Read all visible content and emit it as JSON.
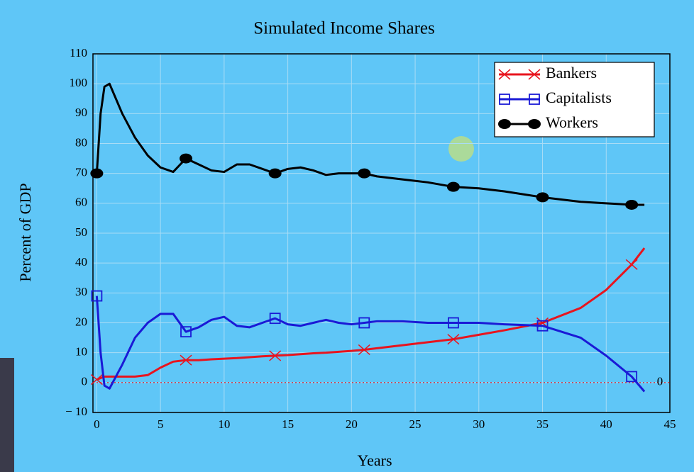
{
  "chart_data": {
    "type": "line",
    "title": "Simulated Income Shares",
    "xlabel": "Years",
    "ylabel": "Percent of GDP",
    "x": [
      0,
      0.3,
      0.6,
      1,
      2,
      3,
      4,
      5,
      6,
      7,
      8,
      9,
      10,
      11,
      12,
      13,
      14,
      15,
      16,
      17,
      18,
      19,
      20,
      21,
      22,
      24,
      26,
      28,
      30,
      32,
      35,
      38,
      40,
      42,
      43
    ],
    "series": [
      {
        "name": "Bankers",
        "color": "#e8141e",
        "marker": "x",
        "values": [
          1,
          1.5,
          2,
          2,
          2,
          2,
          2.5,
          5,
          7,
          7.5,
          7.5,
          7.8,
          8,
          8.2,
          8.5,
          8.8,
          9,
          9.2,
          9.5,
          9.8,
          10,
          10.3,
          10.6,
          11,
          11.5,
          12.5,
          13.5,
          14.5,
          16,
          17.5,
          20,
          25,
          31,
          39.5,
          45
        ]
      },
      {
        "name": "Capitalists",
        "color": "#1a1ad6",
        "marker": "square",
        "values": [
          29,
          10,
          -1,
          -2,
          6,
          15,
          20,
          23,
          23,
          17,
          18.5,
          21,
          22,
          19,
          18.5,
          20,
          21.5,
          19.5,
          19,
          20,
          21,
          20,
          19.5,
          20,
          20.5,
          20.5,
          20,
          20,
          20,
          19.5,
          19,
          15,
          9,
          2,
          -3
        ]
      },
      {
        "name": "Workers",
        "color": "#000000",
        "marker": "circle",
        "values": [
          70,
          90,
          99,
          100,
          90,
          82,
          76,
          72,
          70.5,
          75,
          73,
          71,
          70.5,
          73,
          73,
          71.5,
          70,
          71.5,
          72,
          71,
          69.5,
          70,
          70,
          70,
          69,
          68,
          67,
          65.5,
          65,
          64,
          62,
          60.5,
          60,
          59.5,
          59.5
        ]
      }
    ],
    "xlim": [
      -0.3,
      45
    ],
    "xticks": [
      0,
      5,
      10,
      15,
      20,
      25,
      30,
      35,
      40,
      45
    ],
    "ylim": [
      -10,
      110
    ],
    "yticks": [
      {
        "value": -10,
        "label": "− 10"
      },
      0,
      10,
      20,
      30,
      40,
      50,
      60,
      70,
      80,
      90,
      100,
      110
    ],
    "grid": true,
    "legend": "upper right",
    "hline": {
      "value": 0,
      "label": "0",
      "color": "#e8141e"
    }
  }
}
